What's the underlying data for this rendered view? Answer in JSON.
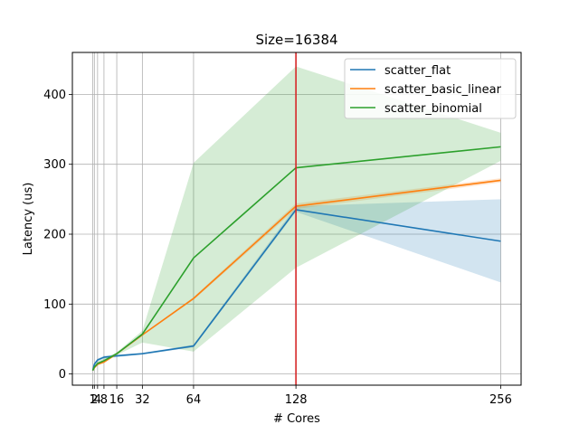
{
  "chart_data": {
    "type": "line",
    "title": "Size=16384",
    "xlabel": "# Cores",
    "ylabel": "Latency (us)",
    "x_ticks": [
      1,
      2,
      4,
      8,
      16,
      32,
      64,
      128,
      256
    ],
    "x_tick_labels": [
      "1",
      "2",
      "4",
      "8",
      "16",
      "32",
      "64",
      "128",
      "256"
    ],
    "y_ticks": [
      0,
      100,
      200,
      300,
      400
    ],
    "y_tick_labels": [
      "0",
      "100",
      "200",
      "300",
      "400"
    ],
    "xlim": [
      -11.75,
      268.75
    ],
    "ylim": [
      -16,
      460
    ],
    "grid": true,
    "vertical_marker": {
      "x": 128,
      "color": "#d62728"
    },
    "legend_position": "top-right",
    "series": [
      {
        "name": "scatter_flat",
        "color": "#1f77b4",
        "x": [
          1,
          2,
          4,
          8,
          16,
          32,
          64,
          128,
          256
        ],
        "y": [
          5,
          14,
          20,
          24,
          26,
          29,
          40,
          235,
          190
        ],
        "lower": [
          4,
          12,
          18,
          22,
          24,
          28,
          38,
          232,
          131
        ],
        "upper": [
          6,
          16,
          22,
          26,
          28,
          30,
          42,
          240,
          250
        ]
      },
      {
        "name": "scatter_basic_linear",
        "color": "#ff7f0e",
        "x": [
          1,
          2,
          4,
          8,
          16,
          32,
          64,
          128,
          256
        ],
        "y": [
          5,
          9,
          14,
          17,
          29,
          56,
          108,
          240,
          277
        ],
        "lower": [
          4,
          8,
          13,
          16,
          28,
          55,
          106,
          236,
          274
        ],
        "upper": [
          6,
          10,
          15,
          18,
          30,
          57,
          110,
          244,
          280
        ]
      },
      {
        "name": "scatter_binomial",
        "color": "#2ca02c",
        "x": [
          1,
          2,
          4,
          8,
          16,
          32,
          64,
          128,
          256
        ],
        "y": [
          5,
          10,
          15,
          19,
          29,
          57,
          166,
          295,
          325
        ],
        "lower": [
          4,
          8,
          12,
          16,
          27,
          45,
          32,
          152,
          305
        ],
        "upper": [
          6,
          12,
          18,
          22,
          31,
          62,
          302,
          440,
          345
        ]
      }
    ]
  }
}
